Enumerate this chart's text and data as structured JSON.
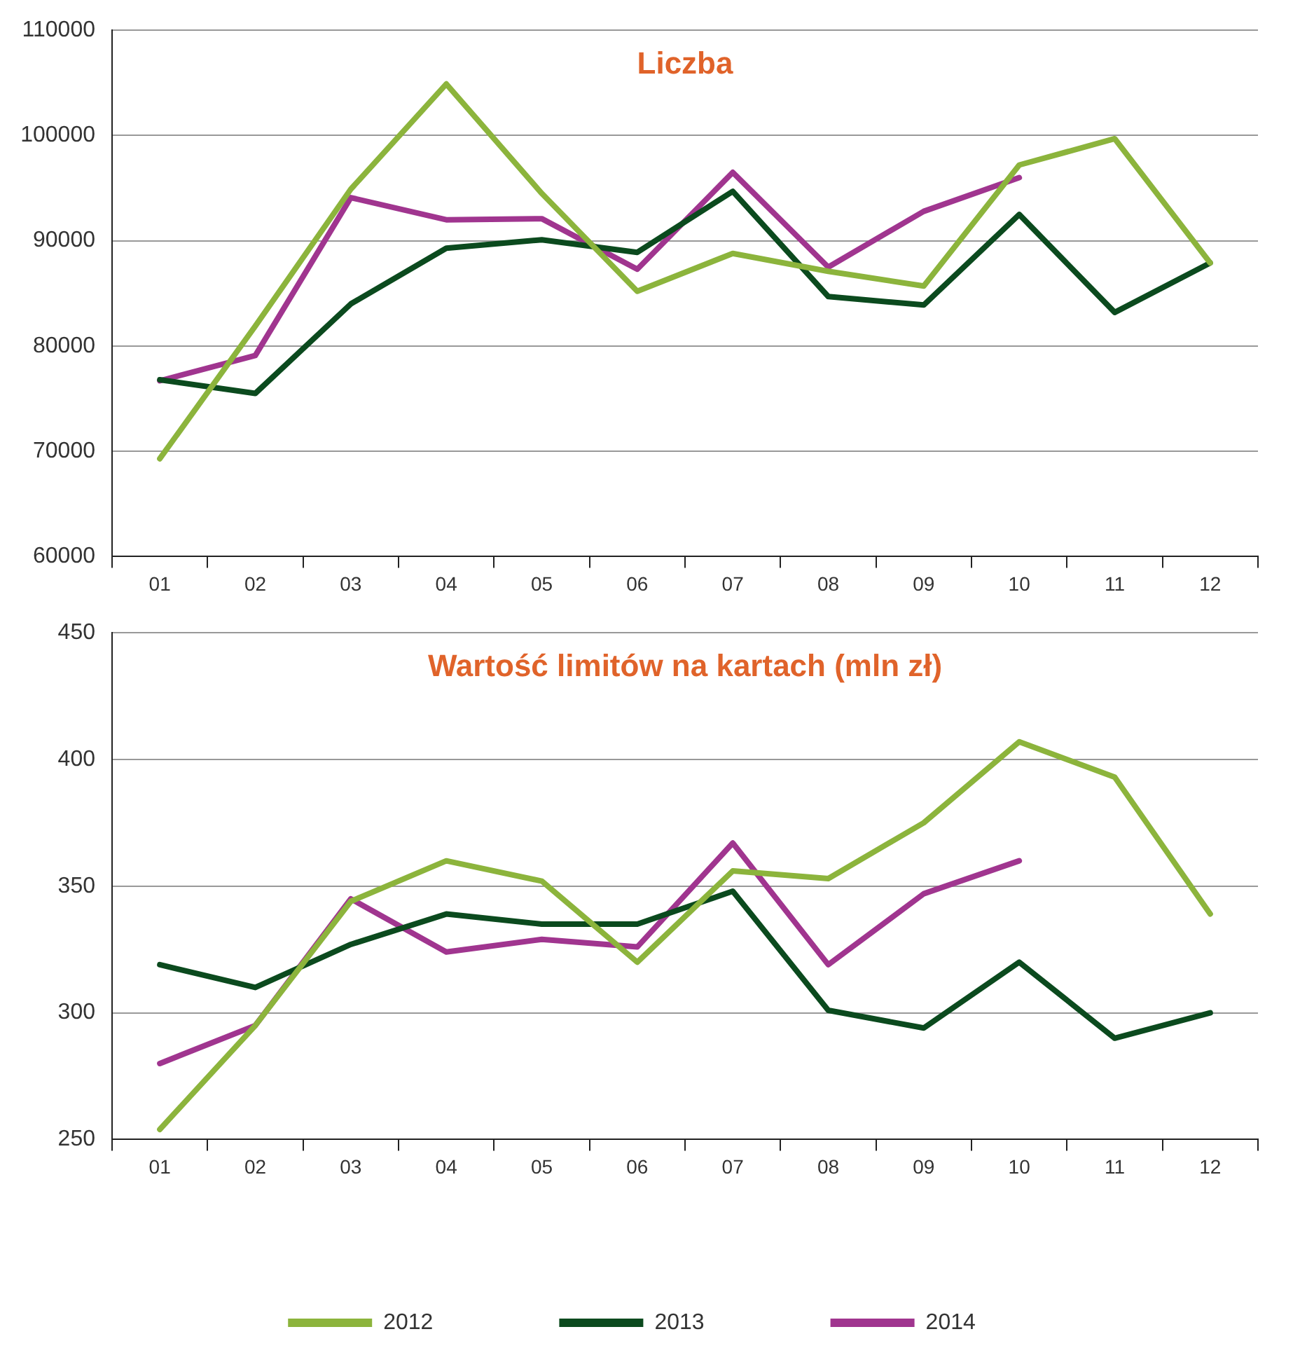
{
  "chart_data": [
    {
      "type": "line",
      "title": "Liczba",
      "categories": [
        "01",
        "02",
        "03",
        "04",
        "05",
        "06",
        "07",
        "08",
        "09",
        "10",
        "11",
        "12"
      ],
      "series": [
        {
          "color": "#8cb43c",
          "values": [
            69300,
            81900,
            94900,
            104900,
            94500,
            85200,
            88800,
            87100,
            85700,
            97200,
            99700,
            87900
          ]
        },
        {
          "color": "#0b4a1e",
          "values": [
            76800,
            75500,
            84000,
            89300,
            90100,
            88900,
            94700,
            84700,
            83900,
            92500,
            83200,
            87900
          ]
        },
        {
          "color": "#a0358f",
          "values": [
            76700,
            79100,
            94100,
            92000,
            92100,
            87300,
            96500,
            87500,
            92800,
            96000,
            null,
            null
          ]
        }
      ],
      "ylim": [
        60000,
        110000
      ],
      "yticks": [
        60000,
        70000,
        80000,
        90000,
        100000,
        110000
      ],
      "grid": "y",
      "legend": false,
      "marker": "none",
      "line_style": "solid"
    },
    {
      "type": "line",
      "title": "Wartość limitów na kartach (mln zł)",
      "categories": [
        "01",
        "02",
        "03",
        "04",
        "05",
        "06",
        "07",
        "08",
        "09",
        "10",
        "11",
        "12"
      ],
      "series": [
        {
          "name": "2012",
          "color": "#8cb43c",
          "values": [
            254,
            295,
            344,
            360,
            352,
            320,
            356,
            353,
            375,
            407,
            393,
            339
          ]
        },
        {
          "name": "2013",
          "color": "#0b4a1e",
          "values": [
            319,
            310,
            327,
            339,
            335,
            335,
            348,
            301,
            294,
            320,
            290,
            300
          ]
        },
        {
          "name": "2014",
          "color": "#a0358f",
          "values": [
            280,
            295,
            345,
            324,
            329,
            326,
            367,
            319,
            347,
            360,
            null,
            null
          ]
        }
      ],
      "ylim": [
        250,
        450
      ],
      "yticks": [
        250,
        300,
        350,
        400,
        450
      ],
      "grid": "y",
      "legend": "bottom",
      "marker": "none",
      "line_style": "solid"
    }
  ]
}
